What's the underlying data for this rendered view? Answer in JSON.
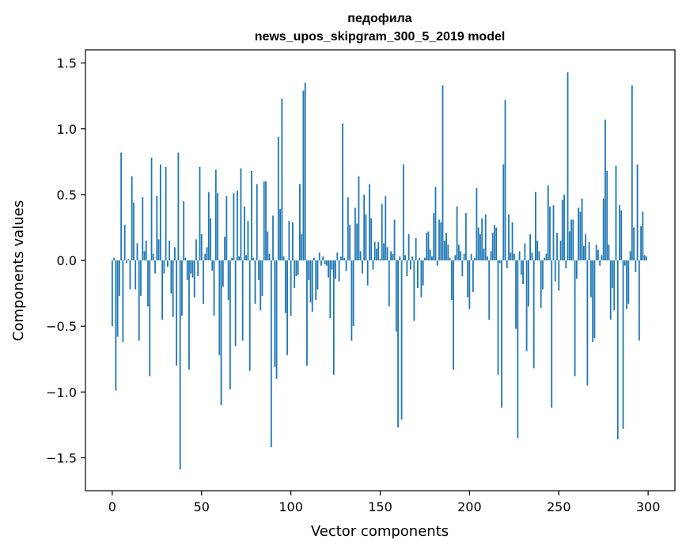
{
  "chart_data": {
    "type": "bar",
    "title_line1": "педофила",
    "title_line2": "news_upos_skipgram_300_5_2019 model",
    "xlabel": "Vector components",
    "ylabel": "Components values",
    "xlim": [
      -15,
      315
    ],
    "ylim": [
      -1.75,
      1.6
    ],
    "xticks": [
      0,
      50,
      100,
      150,
      200,
      250,
      300
    ],
    "xtick_labels": [
      "0",
      "50",
      "100",
      "150",
      "200",
      "250",
      "300"
    ],
    "yticks": [
      -1.5,
      -1.0,
      -0.5,
      0.0,
      0.5,
      1.0,
      1.5
    ],
    "ytick_labels": [
      "−1.5",
      "−1.0",
      "−0.5",
      "0.0",
      "0.5",
      "1.0",
      "1.5"
    ],
    "bar_color": "#1f77b4",
    "values": [
      -0.5,
      0.02,
      -0.99,
      -0.58,
      -0.27,
      0.82,
      -0.62,
      0.27,
      -0.02,
      0.01,
      -0.22,
      0.64,
      0.44,
      -0.22,
      0.13,
      -0.61,
      -0.27,
      0.48,
      0.07,
      0.15,
      -0.35,
      -0.88,
      0.78,
      0.05,
      -0.1,
      0.49,
      0.16,
      0.73,
      -0.45,
      -0.1,
      0.71,
      -0.05,
      0.15,
      -0.25,
      -0.43,
      0.1,
      -0.8,
      0.82,
      -1.59,
      -0.42,
      0.45,
      0.02,
      -0.15,
      -0.83,
      -0.1,
      -0.13,
      -0.28,
      0.16,
      -0.12,
      0.71,
      0.2,
      -0.33,
      0.05,
      0.1,
      0.52,
      0.32,
      -0.08,
      -0.42,
      0.69,
      0.51,
      -0.72,
      -1.1,
      -0.2,
      0.18,
      0.49,
      -0.3,
      -0.98,
      0.02,
      0.51,
      -0.65,
      0.53,
      0.03,
      0.7,
      -0.61,
      0.41,
      0.04,
      0.3,
      -0.84,
      0.68,
      0.02,
      -0.33,
      0.58,
      -0.15,
      -0.38,
      -0.27,
      0.6,
      0.6,
      0.22,
      0.05,
      -1.42,
      0.34,
      -0.81,
      -0.9,
      0.94,
      0.39,
      1.23,
      0.03,
      -0.4,
      -0.72,
      0.3,
      -0.42,
      0.29,
      -0.21,
      -0.12,
      -0.11,
      0.58,
      0.2,
      1.29,
      1.35,
      -0.8,
      -0.15,
      -0.32,
      -0.39,
      0.02,
      -0.3,
      -0.22,
      0.06,
      -0.04,
      0.03,
      -0.03,
      -0.04,
      -0.13,
      -0.44,
      -0.07,
      -0.87,
      -0.14,
      0.06,
      -0.16,
      0.03,
      1.04,
      0.02,
      -0.08,
      0.48,
      0.27,
      -0.61,
      -0.5,
      0.4,
      0.28,
      0.64,
      0.07,
      -0.1,
      0.5,
      0.35,
      -0.19,
      0.58,
      0.32,
      -0.07,
      0.14,
      0.09,
      0.14,
      0.01,
      0.43,
      0.13,
      0.49,
      0.1,
      -0.35,
      0.07,
      0.05,
      0.31,
      -0.54,
      -1.27,
      0.03,
      -1.21,
      0.73,
      0.04,
      -0.12,
      0.2,
      -0.07,
      0.03,
      -0.46,
      0.17,
      -0.21,
      0.02,
      -0.28,
      -0.19,
      0.02,
      0.21,
      0.22,
      0.08,
      0.03,
      0.36,
      0.56,
      -0.04,
      0.31,
      0.29,
      1.33,
      0.15,
      0.21,
      0.12,
      0.02,
      -0.3,
      -0.83,
      0.04,
      0.41,
      0.12,
      0.07,
      -0.12,
      0.05,
      0.36,
      -0.28,
      -0.37,
      0.05,
      -0.24,
      0.02,
      0.55,
      0.25,
      0.2,
      0.32,
      0.09,
      0.35,
      0.03,
      -0.45,
      0.07,
      0.21,
      0.27,
      0.25,
      -0.87,
      -0.02,
      -1.12,
      0.73,
      1.22,
      -0.06,
      0.35,
      0.06,
      0.29,
      0.05,
      -0.52,
      -1.35,
      0.07,
      -0.11,
      -0.18,
      0.13,
      -0.69,
      -0.35,
      0.2,
      0.06,
      -0.82,
      0.52,
      0.15,
      0.07,
      -0.36,
      -0.22,
      0.02,
      0.05,
      0.57,
      0.41,
      -1.12,
      0.42,
      -0.16,
      0.21,
      -0.23,
      0.15,
      0.46,
      0.5,
      -0.06,
      1.43,
      0.22,
      0.31,
      0.31,
      -0.88,
      -0.14,
      0.4,
      0.37,
      0.47,
      0.11,
      0.2,
      -0.95,
      0.14,
      -0.28,
      -0.62,
      -0.59,
      0.12,
      0.08,
      -0.04,
      0.04,
      0.47,
      1.07,
      0.68,
      0.12,
      -0.45,
      -0.21,
      -0.38,
      0.72,
      -1.36,
      0.42,
      0.38,
      -1.28,
      -0.04,
      -0.37,
      -0.33,
      0.07,
      1.33,
      0.25,
      -0.09,
      0.73,
      -0.61,
      0.26,
      0.37,
      0.04,
      0.03
    ]
  }
}
